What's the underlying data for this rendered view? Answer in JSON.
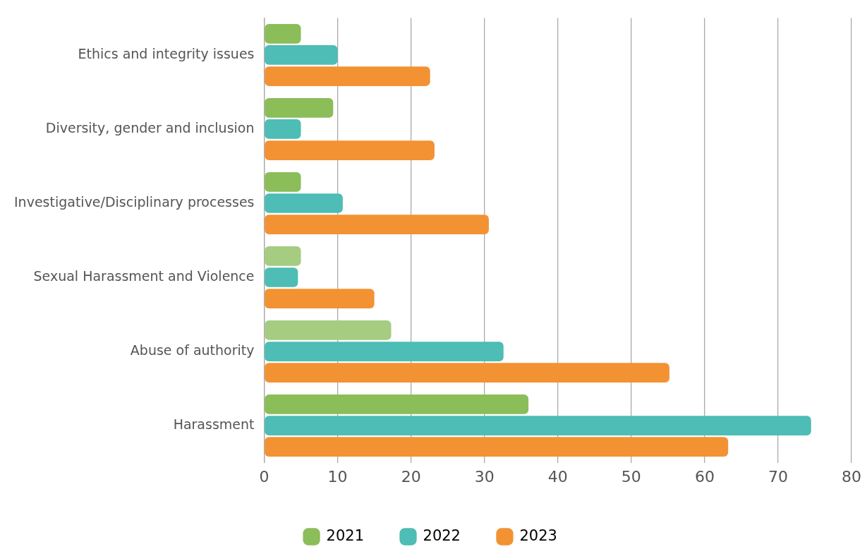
{
  "chart_data": {
    "type": "bar",
    "orientation": "horizontal",
    "categories": [
      "Ethics and integrity issues",
      "Diversity, gender and inclusion",
      "Investigative/Disciplinary processes",
      "Sexual Harassment and Violence",
      "Abuse of authority",
      "Harassment"
    ],
    "series": [
      {
        "name": "2021",
        "color": "#8bbd59",
        "colors": [
          "#8bbd59",
          "#8bbd59",
          "#8bbd59",
          "#a5cc80",
          "#a5cc80",
          "#8bbd59"
        ],
        "values": [
          5,
          9.4,
          5,
          5,
          17.3,
          36
        ]
      },
      {
        "name": "2022",
        "color": "#4dbdb5",
        "values": [
          10,
          5,
          10.7,
          4.6,
          32.6,
          74.5
        ]
      },
      {
        "name": "2023",
        "color": "#f39233",
        "values": [
          22.6,
          23.2,
          30.6,
          15,
          55.2,
          63.2
        ]
      }
    ],
    "xlim": [
      0,
      80
    ],
    "xticks": [
      0,
      10,
      20,
      30,
      40,
      50,
      60,
      70,
      80
    ],
    "grid": "x",
    "legend": "bottom"
  }
}
